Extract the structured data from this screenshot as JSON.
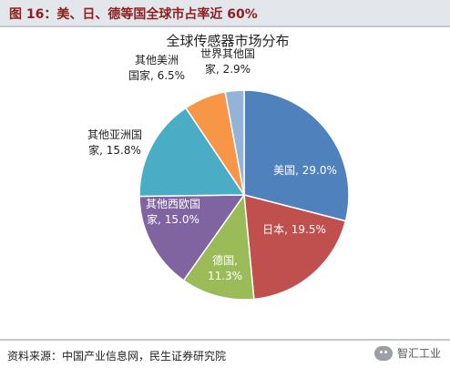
{
  "figure": {
    "label": "图 16：美、日、德等国全球市占率近 60%"
  },
  "chart_data": {
    "type": "pie",
    "title": "全球传感器市场分布",
    "slices": [
      {
        "name": "美国",
        "value": 29.0,
        "label_lines": [
          "美国, 29.0%"
        ],
        "color": "#4f81bd"
      },
      {
        "name": "日本",
        "value": 19.5,
        "label_lines": [
          "日本, 19.5%"
        ],
        "color": "#c0504d"
      },
      {
        "name": "德国",
        "value": 11.3,
        "label_lines": [
          "德国,",
          "11.3%"
        ],
        "color": "#9bbb59"
      },
      {
        "name": "其他西欧国家",
        "value": 15.0,
        "label_lines": [
          "其他西欧国",
          "家, 15.0%"
        ],
        "color": "#8064a2"
      },
      {
        "name": "其他亚洲国家",
        "value": 15.8,
        "label_lines": [
          "其他亚洲国",
          "家, 15.8%"
        ],
        "color": "#4bacc6"
      },
      {
        "name": "其他美洲国家",
        "value": 6.5,
        "label_lines": [
          "其他美洲",
          "国家, 6.5%"
        ],
        "color": "#f79646"
      },
      {
        "name": "世界其他国家",
        "value": 2.9,
        "label_lines": [
          "世界其他国",
          "家, 2.9%"
        ],
        "color": "#95b3d7"
      }
    ]
  },
  "footer": {
    "source": "资料来源：中国产业信息网，民生证券研究院",
    "watermark": "智汇工业",
    "watermark_icon": "wechat-icon"
  }
}
